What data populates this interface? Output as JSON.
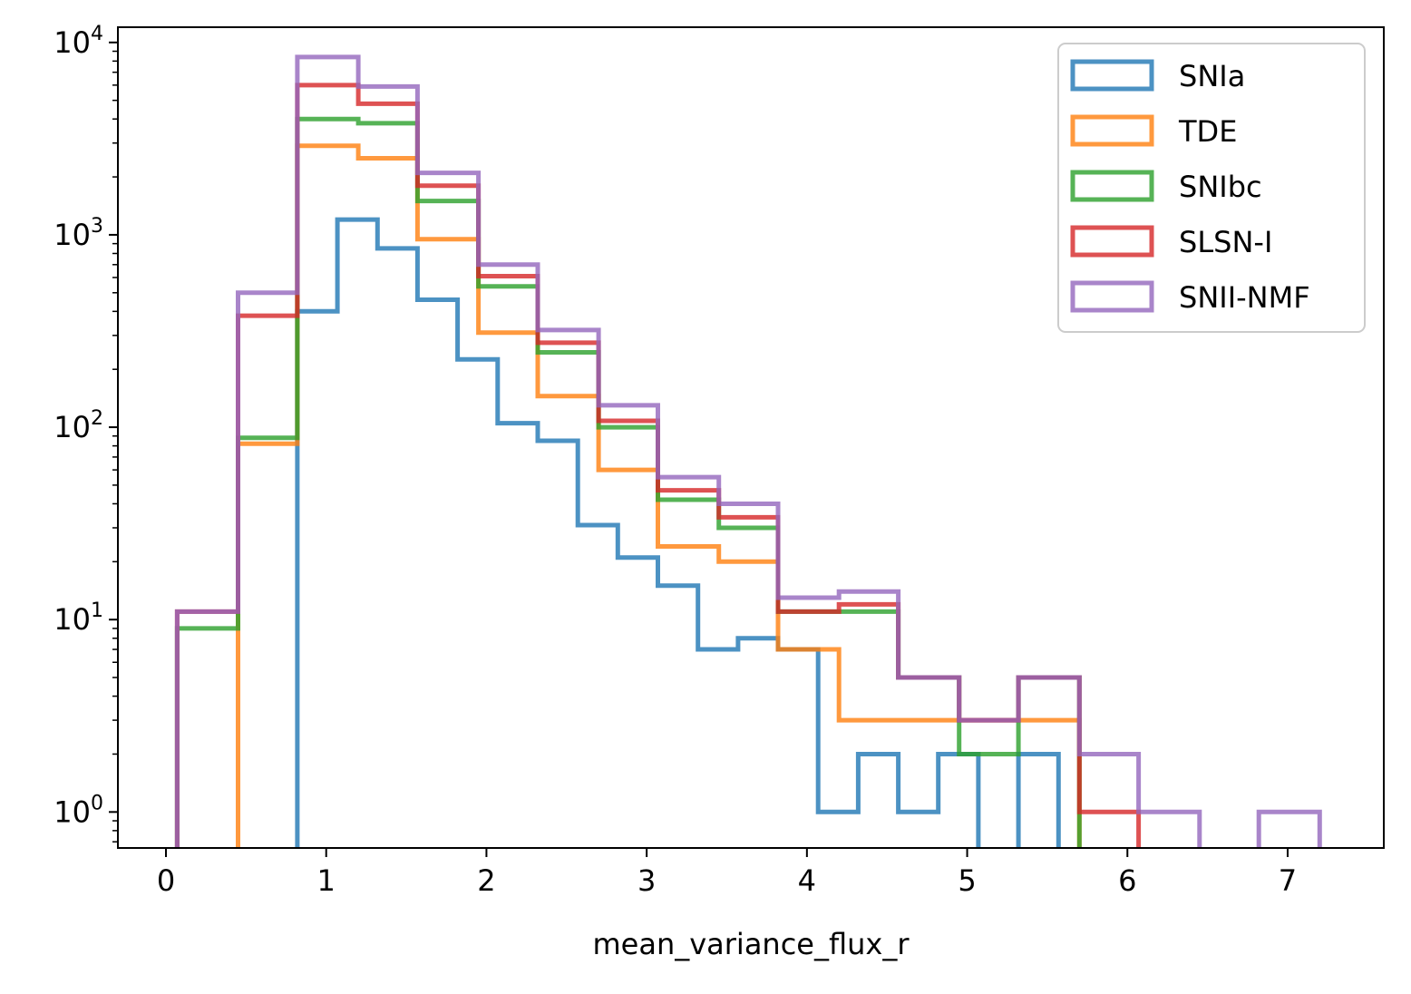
{
  "chart_data": {
    "type": "histogram",
    "xlabel": "mean_variance_flux_r",
    "ylabel": "",
    "y_scale": "log",
    "xlim": [
      -0.3,
      7.6
    ],
    "ylim": [
      0.65,
      12000
    ],
    "x_ticks": [
      0,
      1,
      2,
      3,
      4,
      5,
      6,
      7
    ],
    "x_tick_labels": [
      "0",
      "1",
      "2",
      "3",
      "4",
      "5",
      "6",
      "7"
    ],
    "y_ticks": [
      1,
      10,
      100,
      1000,
      10000
    ],
    "y_tick_labels": [
      {
        "base": "10",
        "exp": "0"
      },
      {
        "base": "10",
        "exp": "1"
      },
      {
        "base": "10",
        "exp": "2"
      },
      {
        "base": "10",
        "exp": "3"
      },
      {
        "base": "10",
        "exp": "4"
      }
    ],
    "legend_position": "upper right",
    "series": [
      {
        "name": "SNIa",
        "color": "#1f77b4",
        "edges": [
          0.82,
          1.07,
          1.32,
          1.57,
          1.82,
          2.07,
          2.32,
          2.57,
          2.82,
          3.07,
          3.32,
          3.57,
          3.82,
          4.07,
          4.32,
          4.57,
          4.82,
          5.07,
          5.32,
          5.57
        ],
        "counts": [
          400,
          1200,
          850,
          460,
          225,
          105,
          85,
          31,
          21,
          15,
          7,
          8,
          7,
          1,
          2,
          1,
          2,
          0,
          2
        ]
      },
      {
        "name": "TDE",
        "color": "#ff7f0e",
        "edges": [
          0.45,
          0.82,
          1.2,
          1.57,
          1.95,
          2.32,
          2.7,
          3.07,
          3.45,
          3.82,
          4.2,
          4.57,
          4.95,
          5.32,
          5.7
        ],
        "counts": [
          82,
          2900,
          2500,
          950,
          310,
          145,
          60,
          24,
          20,
          7,
          3,
          3,
          3,
          3
        ]
      },
      {
        "name": "SNIbc",
        "color": "#2ca02c",
        "edges": [
          0.07,
          0.45,
          0.82,
          1.2,
          1.57,
          1.95,
          2.32,
          2.7,
          3.07,
          3.45,
          3.82,
          4.2,
          4.57,
          4.95,
          5.32,
          5.7
        ],
        "counts": [
          9,
          88,
          4000,
          3800,
          1500,
          540,
          245,
          100,
          42,
          30,
          11,
          11,
          5,
          2,
          5
        ]
      },
      {
        "name": "SLSN-I",
        "color": "#d62728",
        "edges": [
          0.07,
          0.45,
          0.82,
          1.2,
          1.57,
          1.95,
          2.32,
          2.7,
          3.07,
          3.45,
          3.82,
          4.2,
          4.57,
          4.95,
          5.32,
          5.7,
          6.07
        ],
        "counts": [
          11,
          380,
          6000,
          4800,
          1800,
          610,
          275,
          108,
          47,
          34,
          11,
          12,
          5,
          3,
          5,
          1
        ]
      },
      {
        "name": "SNII-NMF",
        "color": "#9467bd",
        "edges": [
          0.07,
          0.45,
          0.82,
          1.2,
          1.57,
          1.95,
          2.32,
          2.7,
          3.07,
          3.45,
          3.82,
          4.2,
          4.57,
          4.95,
          5.32,
          5.7,
          6.07,
          6.45,
          6.82,
          7.2
        ],
        "counts": [
          11,
          500,
          8400,
          5900,
          2100,
          700,
          320,
          130,
          55,
          40,
          13,
          14,
          5,
          3,
          5,
          2,
          1,
          0,
          1
        ]
      }
    ]
  }
}
